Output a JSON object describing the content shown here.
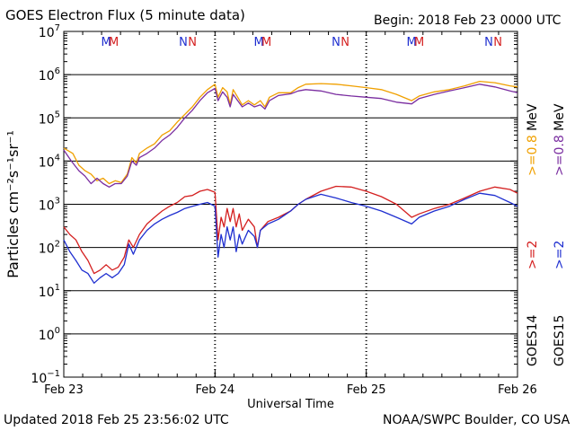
{
  "chart_data": {
    "type": "line",
    "title": "GOES Electron Flux (5 minute data)",
    "begin_label": "Begin: 2018 Feb 23 0000 UTC",
    "xlabel": "Universal Time",
    "ylabel": "Particles cm⁻²s⁻¹sr⁻¹",
    "x_range_days": [
      0,
      3
    ],
    "x_ticks": [
      {
        "day": 0,
        "label": "Feb 23"
      },
      {
        "day": 1,
        "label": "Feb 24"
      },
      {
        "day": 2,
        "label": "Feb 25"
      },
      {
        "day": 3,
        "label": "Feb 26"
      }
    ],
    "y_scale": "log",
    "y_range": [
      0.1,
      10000000
    ],
    "y_ticks": [
      {
        "exp": 7,
        "mant": "10",
        "sup": "7"
      },
      {
        "exp": 6,
        "mant": "10",
        "sup": "6"
      },
      {
        "exp": 5,
        "mant": "10",
        "sup": "5"
      },
      {
        "exp": 4,
        "mant": "10",
        "sup": "4"
      },
      {
        "exp": 3,
        "mant": "10",
        "sup": "3"
      },
      {
        "exp": 2,
        "mant": "10",
        "sup": "2"
      },
      {
        "exp": 1,
        "mant": "10",
        "sup": "1"
      },
      {
        "exp": 0,
        "mant": "10",
        "sup": "0"
      },
      {
        "exp": -1,
        "mant": "10",
        "sup": "−1"
      }
    ],
    "threshold": {
      "value": 1000,
      "style": "dashed"
    },
    "markers": [
      {
        "day": 0.28,
        "letter": "M",
        "color": "#1f2fd0"
      },
      {
        "day": 0.33,
        "letter": "M",
        "color": "#d41f1f"
      },
      {
        "day": 0.79,
        "letter": "N",
        "color": "#1f2fd0"
      },
      {
        "day": 0.85,
        "letter": "N",
        "color": "#d41f1f"
      },
      {
        "day": 1.29,
        "letter": "M",
        "color": "#1f2fd0"
      },
      {
        "day": 1.34,
        "letter": "M",
        "color": "#d41f1f"
      },
      {
        "day": 1.8,
        "letter": "N",
        "color": "#1f2fd0"
      },
      {
        "day": 1.86,
        "letter": "N",
        "color": "#d41f1f"
      },
      {
        "day": 2.3,
        "letter": "M",
        "color": "#1f2fd0"
      },
      {
        "day": 2.35,
        "letter": "M",
        "color": "#d41f1f"
      },
      {
        "day": 2.81,
        "letter": "N",
        "color": "#1f2fd0"
      },
      {
        "day": 2.87,
        "letter": "N",
        "color": "#d41f1f"
      }
    ],
    "legend": {
      "placement": "right",
      "groups": [
        {
          "entries": [
            {
              "text": ">=0.8",
              "color": "#f0a000"
            },
            {
              "text": "MeV",
              "color": "#000000"
            },
            {
              "text": ">=0.8",
              "color": "#7a2da0"
            },
            {
              "text": "MeV",
              "color": "#000000"
            }
          ]
        },
        {
          "entries": [
            {
              "text": ">=2",
              "color": "#d41f1f"
            },
            {
              "text": ">=2",
              "color": "#1f2fd0"
            }
          ]
        },
        {
          "entries": [
            {
              "text": "GOES14",
              "color": "#000000"
            },
            {
              "text": "GOES15",
              "color": "#000000"
            }
          ]
        }
      ]
    },
    "series": [
      {
        "color": "#f0a000",
        "points": [
          [
            0,
            20000
          ],
          [
            0.06,
            15000
          ],
          [
            0.1,
            8000
          ],
          [
            0.14,
            6000
          ],
          [
            0.18,
            5000
          ],
          [
            0.22,
            3500
          ],
          [
            0.26,
            4000
          ],
          [
            0.3,
            3000
          ],
          [
            0.34,
            3500
          ],
          [
            0.38,
            3200
          ],
          [
            0.42,
            5000
          ],
          [
            0.45,
            12000
          ],
          [
            0.48,
            9000
          ],
          [
            0.5,
            15000
          ],
          [
            0.55,
            20000
          ],
          [
            0.6,
            25000
          ],
          [
            0.65,
            40000
          ],
          [
            0.7,
            50000
          ],
          [
            0.75,
            80000
          ],
          [
            0.8,
            120000
          ],
          [
            0.85,
            180000
          ],
          [
            0.9,
            300000
          ],
          [
            0.95,
            450000
          ],
          [
            1.0,
            600000
          ],
          [
            1.02,
            300000
          ],
          [
            1.05,
            500000
          ],
          [
            1.08,
            400000
          ],
          [
            1.1,
            200000
          ],
          [
            1.12,
            450000
          ],
          [
            1.15,
            300000
          ],
          [
            1.18,
            200000
          ],
          [
            1.22,
            250000
          ],
          [
            1.26,
            200000
          ],
          [
            1.3,
            250000
          ],
          [
            1.33,
            180000
          ],
          [
            1.36,
            300000
          ],
          [
            1.42,
            380000
          ],
          [
            1.5,
            380000
          ],
          [
            1.55,
            500000
          ],
          [
            1.6,
            600000
          ],
          [
            1.7,
            620000
          ],
          [
            1.8,
            600000
          ],
          [
            1.9,
            550000
          ],
          [
            2.0,
            500000
          ],
          [
            2.1,
            450000
          ],
          [
            2.2,
            350000
          ],
          [
            2.3,
            250000
          ],
          [
            2.35,
            320000
          ],
          [
            2.45,
            400000
          ],
          [
            2.55,
            450000
          ],
          [
            2.65,
            550000
          ],
          [
            2.75,
            700000
          ],
          [
            2.85,
            650000
          ],
          [
            2.95,
            550000
          ],
          [
            3.0,
            520000
          ]
        ]
      },
      {
        "color": "#7a2da0",
        "points": [
          [
            0,
            18000
          ],
          [
            0.05,
            10000
          ],
          [
            0.1,
            6000
          ],
          [
            0.14,
            4500
          ],
          [
            0.18,
            3000
          ],
          [
            0.22,
            4000
          ],
          [
            0.26,
            3000
          ],
          [
            0.3,
            2500
          ],
          [
            0.34,
            3000
          ],
          [
            0.38,
            3000
          ],
          [
            0.42,
            4500
          ],
          [
            0.45,
            10000
          ],
          [
            0.48,
            8000
          ],
          [
            0.5,
            12000
          ],
          [
            0.55,
            15000
          ],
          [
            0.6,
            20000
          ],
          [
            0.65,
            30000
          ],
          [
            0.7,
            40000
          ],
          [
            0.75,
            60000
          ],
          [
            0.8,
            100000
          ],
          [
            0.85,
            150000
          ],
          [
            0.9,
            250000
          ],
          [
            0.95,
            380000
          ],
          [
            1.0,
            480000
          ],
          [
            1.02,
            250000
          ],
          [
            1.05,
            400000
          ],
          [
            1.08,
            300000
          ],
          [
            1.1,
            180000
          ],
          [
            1.12,
            350000
          ],
          [
            1.15,
            250000
          ],
          [
            1.18,
            180000
          ],
          [
            1.22,
            220000
          ],
          [
            1.26,
            180000
          ],
          [
            1.3,
            200000
          ],
          [
            1.33,
            160000
          ],
          [
            1.36,
            250000
          ],
          [
            1.42,
            330000
          ],
          [
            1.5,
            360000
          ],
          [
            1.55,
            420000
          ],
          [
            1.6,
            450000
          ],
          [
            1.7,
            420000
          ],
          [
            1.8,
            350000
          ],
          [
            1.9,
            320000
          ],
          [
            2.0,
            300000
          ],
          [
            2.1,
            280000
          ],
          [
            2.2,
            230000
          ],
          [
            2.3,
            210000
          ],
          [
            2.35,
            280000
          ],
          [
            2.45,
            350000
          ],
          [
            2.55,
            420000
          ],
          [
            2.65,
            500000
          ],
          [
            2.75,
            600000
          ],
          [
            2.85,
            520000
          ],
          [
            2.95,
            420000
          ],
          [
            3.0,
            380000
          ]
        ]
      },
      {
        "color": "#d41f1f",
        "points": [
          [
            0,
            300
          ],
          [
            0.04,
            200
          ],
          [
            0.08,
            150
          ],
          [
            0.12,
            80
          ],
          [
            0.16,
            50
          ],
          [
            0.2,
            25
          ],
          [
            0.24,
            30
          ],
          [
            0.28,
            40
          ],
          [
            0.32,
            30
          ],
          [
            0.36,
            35
          ],
          [
            0.4,
            60
          ],
          [
            0.43,
            150
          ],
          [
            0.46,
            100
          ],
          [
            0.5,
            200
          ],
          [
            0.55,
            350
          ],
          [
            0.6,
            500
          ],
          [
            0.65,
            700
          ],
          [
            0.7,
            900
          ],
          [
            0.75,
            1100
          ],
          [
            0.8,
            1500
          ],
          [
            0.85,
            1600
          ],
          [
            0.9,
            2000
          ],
          [
            0.95,
            2200
          ],
          [
            1.0,
            1900
          ],
          [
            1.02,
            150
          ],
          [
            1.04,
            500
          ],
          [
            1.06,
            300
          ],
          [
            1.08,
            800
          ],
          [
            1.1,
            400
          ],
          [
            1.12,
            800
          ],
          [
            1.14,
            300
          ],
          [
            1.16,
            600
          ],
          [
            1.18,
            250
          ],
          [
            1.22,
            450
          ],
          [
            1.26,
            300
          ],
          [
            1.28,
            100
          ],
          [
            1.3,
            250
          ],
          [
            1.35,
            400
          ],
          [
            1.42,
            500
          ],
          [
            1.5,
            700
          ],
          [
            1.55,
            1000
          ],
          [
            1.6,
            1300
          ],
          [
            1.7,
            2000
          ],
          [
            1.8,
            2600
          ],
          [
            1.9,
            2500
          ],
          [
            2.0,
            2000
          ],
          [
            2.1,
            1500
          ],
          [
            2.2,
            1000
          ],
          [
            2.3,
            500
          ],
          [
            2.35,
            600
          ],
          [
            2.45,
            800
          ],
          [
            2.55,
            1000
          ],
          [
            2.65,
            1400
          ],
          [
            2.75,
            2000
          ],
          [
            2.85,
            2500
          ],
          [
            2.95,
            2200
          ],
          [
            3.0,
            1800
          ]
        ]
      },
      {
        "color": "#1f2fd0",
        "points": [
          [
            0,
            150
          ],
          [
            0.04,
            80
          ],
          [
            0.08,
            50
          ],
          [
            0.12,
            30
          ],
          [
            0.16,
            25
          ],
          [
            0.2,
            15
          ],
          [
            0.24,
            20
          ],
          [
            0.28,
            25
          ],
          [
            0.32,
            20
          ],
          [
            0.36,
            25
          ],
          [
            0.4,
            40
          ],
          [
            0.43,
            120
          ],
          [
            0.46,
            70
          ],
          [
            0.5,
            150
          ],
          [
            0.55,
            250
          ],
          [
            0.6,
            350
          ],
          [
            0.65,
            450
          ],
          [
            0.7,
            550
          ],
          [
            0.75,
            650
          ],
          [
            0.8,
            800
          ],
          [
            0.85,
            900
          ],
          [
            0.9,
            1000
          ],
          [
            0.95,
            1100
          ],
          [
            1.0,
            900
          ],
          [
            1.02,
            60
          ],
          [
            1.04,
            200
          ],
          [
            1.06,
            100
          ],
          [
            1.08,
            300
          ],
          [
            1.1,
            150
          ],
          [
            1.12,
            300
          ],
          [
            1.14,
            80
          ],
          [
            1.16,
            200
          ],
          [
            1.18,
            120
          ],
          [
            1.22,
            250
          ],
          [
            1.26,
            180
          ],
          [
            1.28,
            100
          ],
          [
            1.3,
            250
          ],
          [
            1.35,
            350
          ],
          [
            1.42,
            450
          ],
          [
            1.5,
            700
          ],
          [
            1.55,
            1000
          ],
          [
            1.6,
            1300
          ],
          [
            1.7,
            1700
          ],
          [
            1.8,
            1400
          ],
          [
            1.9,
            1100
          ],
          [
            2.0,
            900
          ],
          [
            2.1,
            700
          ],
          [
            2.2,
            500
          ],
          [
            2.3,
            350
          ],
          [
            2.35,
            500
          ],
          [
            2.45,
            700
          ],
          [
            2.55,
            900
          ],
          [
            2.65,
            1300
          ],
          [
            2.75,
            1800
          ],
          [
            2.85,
            1600
          ],
          [
            2.95,
            1100
          ],
          [
            3.0,
            900
          ]
        ]
      }
    ]
  },
  "footer": {
    "updated": "Updated 2018 Feb 25 23:56:02 UTC",
    "credit": "NOAA/SWPC Boulder, CO USA"
  }
}
